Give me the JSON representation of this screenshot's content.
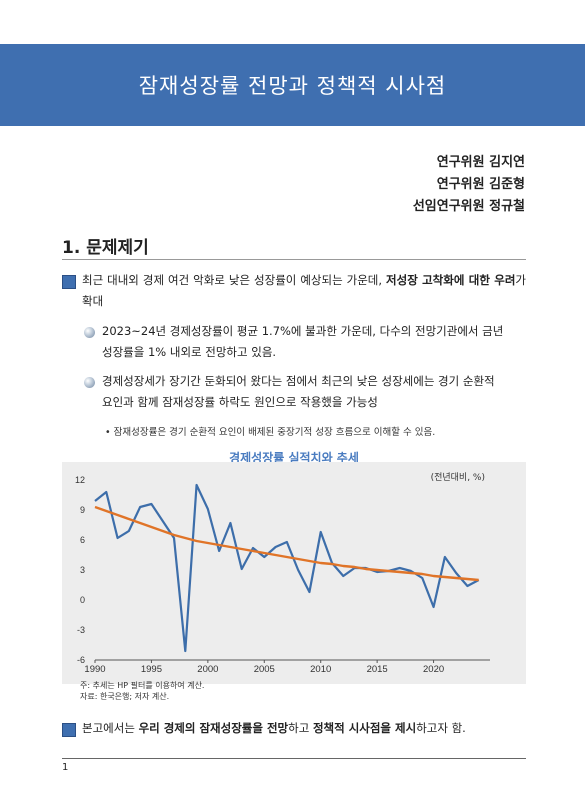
{
  "title": "잠재성장률 전망과 정책적 시사점",
  "authors": [
    "연구위원 김지연",
    "연구위원 김준형",
    "선임연구위원 정규철"
  ],
  "section": {
    "title": "1. 문제제기"
  },
  "bullet1": {
    "pre": "최근 대내외 경제 여건 악화로 낮은 성장률이 예상되는 가운데, ",
    "bold": "저성장 고착화에 대한 우려",
    "post": "가 확대"
  },
  "sub1": {
    "line1": "2023~24년 경제성장률이 평균 1.7%에 불과한 가운데, 다수의 전망기관에서 금년",
    "line2": "성장률을 1% 내외로 전망하고 있음."
  },
  "sub2": {
    "line1": "경제성장세가 장기간 둔화되어 왔다는 점에서 최근의 낮은 성장세에는 경기 순환적",
    "line2": "요인과 함께 잠재성장률 하락도 원인으로 작용했을 가능성"
  },
  "note1": "• 잠재성장률은 경기 순환적 요인이 배제된 중장기적 성장 흐름으로 이해할 수 있음.",
  "chart_title": "경제성장률 실적치와 추세",
  "chart_unit": "(전년대비, %)",
  "chart_note": "주: 추세는 HP 필터를 이용하여 계산.",
  "chart_source": "자료: 한국은행; 저자 계산.",
  "bullet2": {
    "p1": "본고에서는 ",
    "b1": "우리 경제의 잠재성장률을 전망",
    "p2": "하고 ",
    "b2": "정책적 시사점을 제시",
    "p3": "하고자 함."
  },
  "page_number": "1",
  "chart_data": {
    "type": "line",
    "x": [
      1990,
      1991,
      1992,
      1993,
      1994,
      1995,
      1996,
      1997,
      1998,
      1999,
      2000,
      2001,
      2002,
      2003,
      2004,
      2005,
      2006,
      2007,
      2008,
      2009,
      2010,
      2011,
      2012,
      2013,
      2014,
      2015,
      2016,
      2017,
      2018,
      2019,
      2020,
      2021,
      2022,
      2023,
      2024
    ],
    "ylim": [
      -6,
      12
    ],
    "yticks": [
      12,
      9,
      6,
      3,
      0,
      -3,
      -6
    ],
    "xticks": [
      1990,
      1995,
      2000,
      2005,
      2010,
      2015,
      2020
    ],
    "series": [
      {
        "values": [
          9.9,
          10.8,
          6.2,
          6.9,
          9.3,
          9.6,
          7.9,
          6.2,
          -5.1,
          11.5,
          9.1,
          4.9,
          7.7,
          3.1,
          5.2,
          4.3,
          5.3,
          5.8,
          3.0,
          0.8,
          6.8,
          3.7,
          2.4,
          3.2,
          3.2,
          2.8,
          2.9,
          3.2,
          2.9,
          2.2,
          -0.7,
          4.3,
          2.7,
          1.4,
          2.0
        ],
        "color": "#3d6eaa"
      },
      {
        "values": [
          9.3,
          8.9,
          8.5,
          8.1,
          7.7,
          7.3,
          6.9,
          6.5,
          6.2,
          5.9,
          5.7,
          5.5,
          5.3,
          5.1,
          4.9,
          4.7,
          4.5,
          4.3,
          4.1,
          3.9,
          3.7,
          3.6,
          3.4,
          3.3,
          3.1,
          3.0,
          2.9,
          2.8,
          2.7,
          2.6,
          2.4,
          2.3,
          2.2,
          2.1,
          2.0
        ],
        "color": "#e07428"
      }
    ]
  }
}
